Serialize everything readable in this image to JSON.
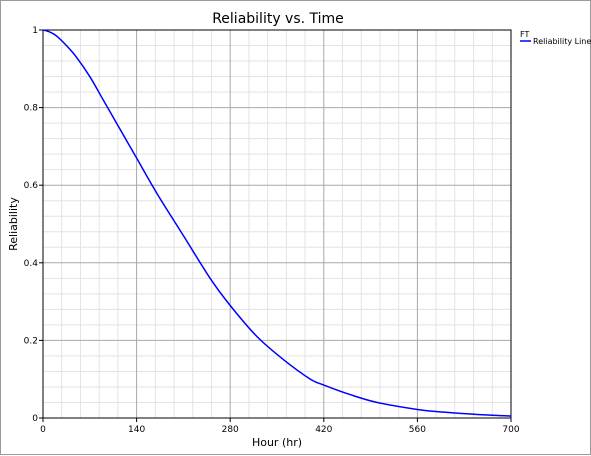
{
  "chart_data": {
    "type": "line",
    "title": "Reliability vs. Time",
    "xlabel": "Hour (hr)",
    "ylabel": "Reliability",
    "xlim": [
      0,
      700
    ],
    "ylim": [
      0,
      1
    ],
    "x_ticks": [
      0,
      140,
      280,
      420,
      560,
      700
    ],
    "y_ticks": [
      0,
      0.2,
      0.4,
      0.6,
      0.8,
      1
    ],
    "grid": true,
    "minor_grid": true,
    "legend": {
      "placement": "top-right-outside",
      "title": "FT",
      "entries": [
        "Reliability Line"
      ]
    },
    "series": [
      {
        "name": "Reliability Line",
        "color": "#0000ff",
        "x": [
          0,
          10,
          20,
          35,
          50,
          70,
          90,
          110,
          140,
          170,
          210,
          250,
          280,
          320,
          360,
          400,
          420,
          460,
          500,
          560,
          600,
          650,
          700
        ],
        "y": [
          1.0,
          0.995,
          0.985,
          0.96,
          0.93,
          0.88,
          0.82,
          0.76,
          0.67,
          0.58,
          0.47,
          0.36,
          0.29,
          0.21,
          0.15,
          0.1,
          0.085,
          0.06,
          0.04,
          0.022,
          0.015,
          0.009,
          0.005
        ]
      }
    ]
  },
  "colors": {
    "line": "#0000ff",
    "major_grid": "#a8a8a8",
    "minor_grid": "#e3e3e3",
    "axis": "#000000"
  }
}
